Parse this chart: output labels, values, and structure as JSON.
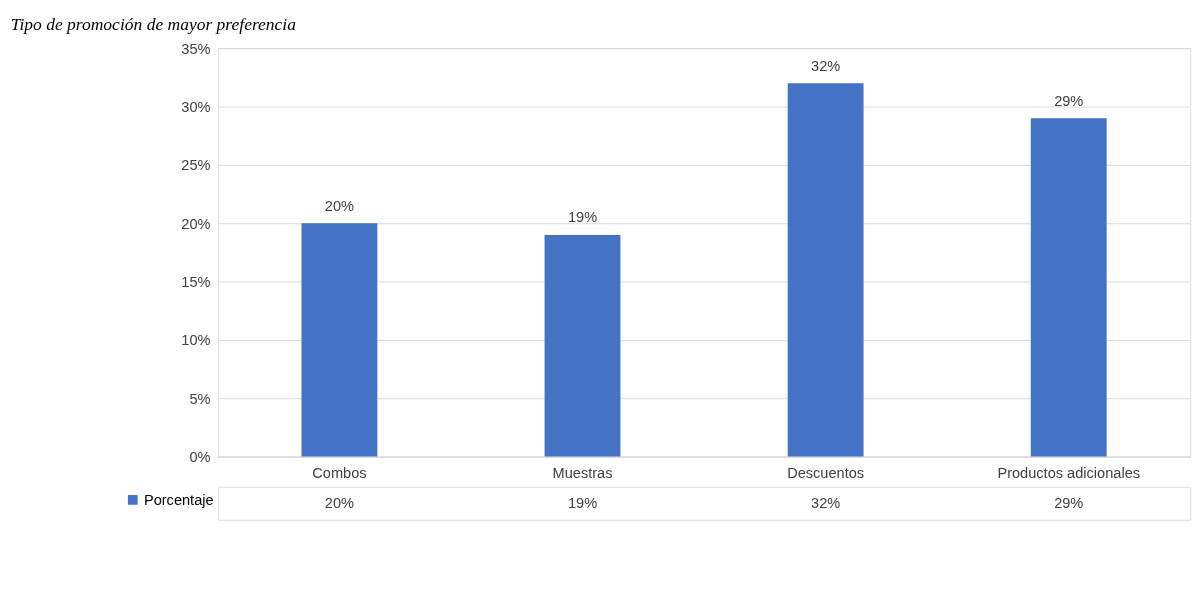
{
  "chart_data": {
    "type": "bar",
    "title": "Tipo de promoción de mayor preferencia",
    "categories": [
      "Combos",
      "Muestras",
      "Descuentos",
      "Productos adicionales"
    ],
    "series": [
      {
        "name": "Porcentaje",
        "color": "#4472c4",
        "values": [
          20,
          19,
          32,
          29
        ],
        "value_labels": [
          "20%",
          "19%",
          "32%",
          "29%"
        ]
      }
    ],
    "ylim": [
      0,
      35
    ],
    "yticks": [
      {
        "value": 0,
        "label": "0%"
      },
      {
        "value": 5,
        "label": "5%"
      },
      {
        "value": 10,
        "label": "10%"
      },
      {
        "value": 15,
        "label": "15%"
      },
      {
        "value": 20,
        "label": "20%"
      },
      {
        "value": 25,
        "label": "25%"
      },
      {
        "value": 30,
        "label": "30%"
      },
      {
        "value": 35,
        "label": "35%"
      }
    ],
    "grid": "y",
    "legend": "bottom left"
  }
}
